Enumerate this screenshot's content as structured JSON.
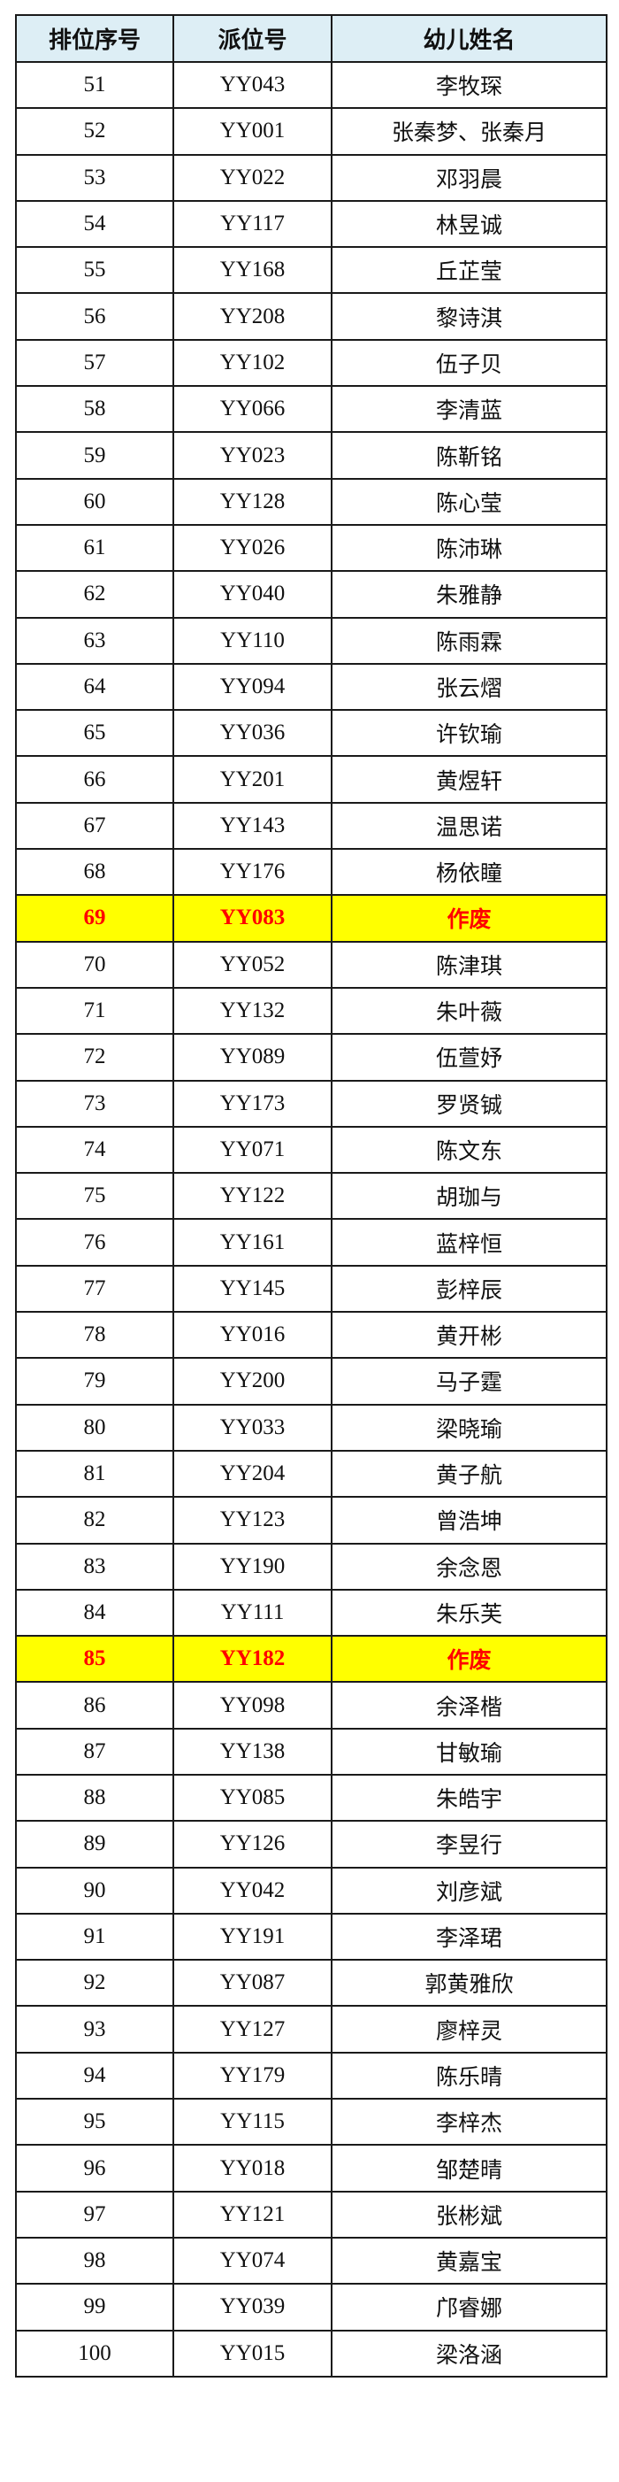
{
  "colors": {
    "header_bg": "#ddeef5",
    "void_row_bg": "#ffff00",
    "void_text": "#ff0000"
  },
  "headers": [
    "排位序号",
    "派位号",
    "幼儿姓名"
  ],
  "rows": [
    [
      "51",
      "YY043",
      "李牧琛"
    ],
    [
      "52",
      "YY001",
      "张秦梦、张秦月"
    ],
    [
      "53",
      "YY022",
      "邓羽晨"
    ],
    [
      "54",
      "YY117",
      "林昱诚"
    ],
    [
      "55",
      "YY168",
      "丘芷莹"
    ],
    [
      "56",
      "YY208",
      "黎诗淇"
    ],
    [
      "57",
      "YY102",
      "伍子贝"
    ],
    [
      "58",
      "YY066",
      "李清蓝"
    ],
    [
      "59",
      "YY023",
      "陈靳铭"
    ],
    [
      "60",
      "YY128",
      "陈心莹"
    ],
    [
      "61",
      "YY026",
      "陈沛琳"
    ],
    [
      "62",
      "YY040",
      "朱雅静"
    ],
    [
      "63",
      "YY110",
      "陈雨霖"
    ],
    [
      "64",
      "YY094",
      "张云熠"
    ],
    [
      "65",
      "YY036",
      "许钦瑜"
    ],
    [
      "66",
      "YY201",
      "黄煜轩"
    ],
    [
      "67",
      "YY143",
      "温思诺"
    ],
    [
      "68",
      "YY176",
      "杨依瞳"
    ],
    [
      "69",
      "YY083",
      "作废"
    ],
    [
      "70",
      "YY052",
      "陈津琪"
    ],
    [
      "71",
      "YY132",
      "朱叶薇"
    ],
    [
      "72",
      "YY089",
      "伍萱妤"
    ],
    [
      "73",
      "YY173",
      "罗贤铖"
    ],
    [
      "74",
      "YY071",
      "陈文东"
    ],
    [
      "75",
      "YY122",
      "胡珈与"
    ],
    [
      "76",
      "YY161",
      "蓝梓恒"
    ],
    [
      "77",
      "YY145",
      "彭梓辰"
    ],
    [
      "78",
      "YY016",
      "黄开彬"
    ],
    [
      "79",
      "YY200",
      "马子霆"
    ],
    [
      "80",
      "YY033",
      "梁晓瑜"
    ],
    [
      "81",
      "YY204",
      "黄子航"
    ],
    [
      "82",
      "YY123",
      "曾浩坤"
    ],
    [
      "83",
      "YY190",
      "余念恩"
    ],
    [
      "84",
      "YY111",
      "朱乐芙"
    ],
    [
      "85",
      "YY182",
      "作废"
    ],
    [
      "86",
      "YY098",
      "余泽楷"
    ],
    [
      "87",
      "YY138",
      "甘敏瑜"
    ],
    [
      "88",
      "YY085",
      "朱皓宇"
    ],
    [
      "89",
      "YY126",
      "李昱行"
    ],
    [
      "90",
      "YY042",
      "刘彦斌"
    ],
    [
      "91",
      "YY191",
      "李泽珺"
    ],
    [
      "92",
      "YY087",
      "郭黄雅欣"
    ],
    [
      "93",
      "YY127",
      "廖梓灵"
    ],
    [
      "94",
      "YY179",
      "陈乐晴"
    ],
    [
      "95",
      "YY115",
      "李梓杰"
    ],
    [
      "96",
      "YY018",
      "邹楚晴"
    ],
    [
      "97",
      "YY121",
      "张彬斌"
    ],
    [
      "98",
      "YY074",
      "黄嘉宝"
    ],
    [
      "99",
      "YY039",
      "邝睿娜"
    ],
    [
      "100",
      "YY015",
      "梁洛涵"
    ]
  ],
  "void_rows": [
    "69",
    "85"
  ]
}
